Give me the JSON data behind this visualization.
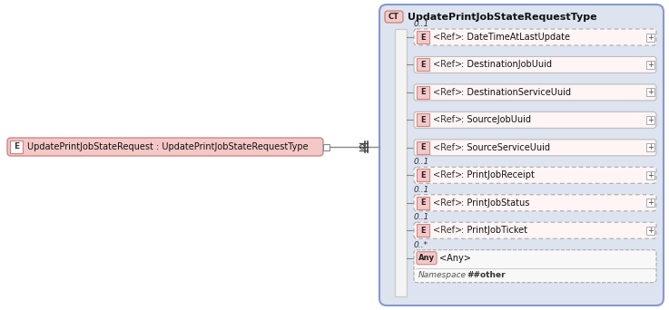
{
  "bg_color": "#ffffff",
  "ct_box_color": "#dde4f0",
  "ct_border_color": "#8899cc",
  "element_fill": "#f5c8c8",
  "element_border": "#cc8888",
  "dashed_box_border": "#aaaaaa",
  "solid_box_border": "#bbbbbb",
  "left_element_label": "UpdatePrintJobStateRequest : UpdatePrintJobStateRequestType",
  "ct_label": "UpdatePrintJobStateRequestType",
  "elements": [
    {
      "label": ": DateTimeAtLastUpdate",
      "cardinality": "0..1",
      "border_style": "dashed",
      "has_plus": true,
      "is_any": false
    },
    {
      "label": ": DestinationJobUuid",
      "cardinality": "",
      "border_style": "solid",
      "has_plus": true,
      "is_any": false
    },
    {
      "label": ": DestinationServiceUuid",
      "cardinality": "",
      "border_style": "solid",
      "has_plus": true,
      "is_any": false
    },
    {
      "label": ": SourceJobUuid",
      "cardinality": "",
      "border_style": "solid",
      "has_plus": true,
      "is_any": false
    },
    {
      "label": ": SourceServiceUuid",
      "cardinality": "",
      "border_style": "solid",
      "has_plus": true,
      "is_any": false
    },
    {
      "label": ": PrintJobReceipt",
      "cardinality": "0..1",
      "border_style": "dashed",
      "has_plus": true,
      "is_any": false
    },
    {
      "label": ": PrintJobStatus",
      "cardinality": "0..1",
      "border_style": "dashed",
      "has_plus": true,
      "is_any": false
    },
    {
      "label": ": PrintJobTicket",
      "cardinality": "0..1",
      "border_style": "dashed",
      "has_plus": true,
      "is_any": false
    },
    {
      "label": "<Any>",
      "cardinality": "0..*",
      "border_style": "dashed",
      "has_plus": false,
      "is_any": true
    }
  ],
  "figw": 7.37,
  "figh": 3.42,
  "dpi": 100
}
